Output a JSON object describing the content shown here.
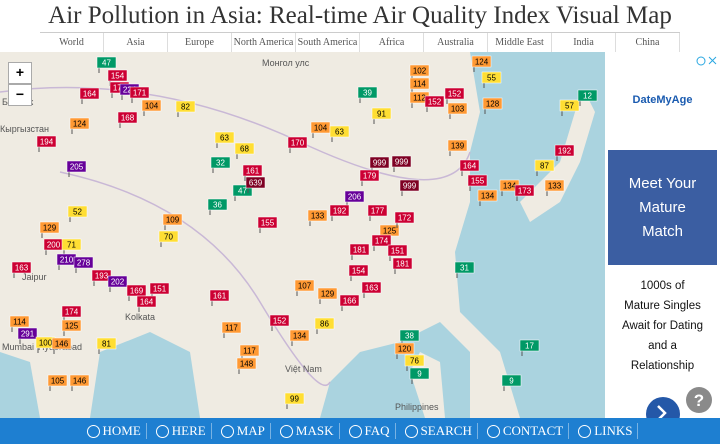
{
  "title": "Air Pollution in Asia: Real-time Air Quality Index Visual Map",
  "tabs": [
    "World",
    "Asia",
    "Europe",
    "North America",
    "South America",
    "Africa",
    "Australia",
    "Middle East",
    "India",
    "China"
  ],
  "zoom": [
    "+",
    "−"
  ],
  "map_labels": [
    "Бишкек",
    "Кыргызстан",
    "Монгол улс",
    "Jaipur",
    "Kolkata",
    "Mumbai",
    "Hyderabad",
    "Việt Nam",
    "Philippines"
  ],
  "markers": [
    47,
    154,
    177,
    224,
    171,
    164,
    104,
    82,
    168,
    124,
    194,
    205,
    52,
    129,
    200,
    71,
    163,
    210,
    278,
    193,
    202,
    169,
    151,
    164,
    109,
    70,
    174,
    125,
    114,
    291,
    100,
    146,
    105,
    146,
    81,
    63,
    32,
    68,
    36,
    47,
    161,
    639,
    170,
    104,
    63,
    39,
    91,
    102,
    114,
    112,
    152,
    103,
    152,
    124,
    55,
    128,
    999,
    999,
    999,
    206,
    179,
    177,
    192,
    133,
    155,
    125,
    172,
    139,
    164,
    155,
    134,
    134,
    173,
    133,
    192,
    57,
    12,
    87,
    174,
    181,
    151,
    181,
    154,
    107,
    129,
    166,
    163,
    161,
    117,
    152,
    117,
    148,
    134,
    86,
    38,
    120,
    9,
    99,
    31,
    17,
    9,
    76
  ],
  "ad": {
    "brand": "DateMyAge",
    "headline": [
      "Meet Your",
      "Mature",
      "Match"
    ],
    "body": [
      "1000s of",
      "Mature Singles",
      "Await for Dating",
      "and a",
      "Relationship"
    ]
  },
  "nav": [
    "HOME",
    "HERE",
    "MAP",
    "MASK",
    "FAQ",
    "SEARCH",
    "CONTACT",
    "LINKS"
  ]
}
